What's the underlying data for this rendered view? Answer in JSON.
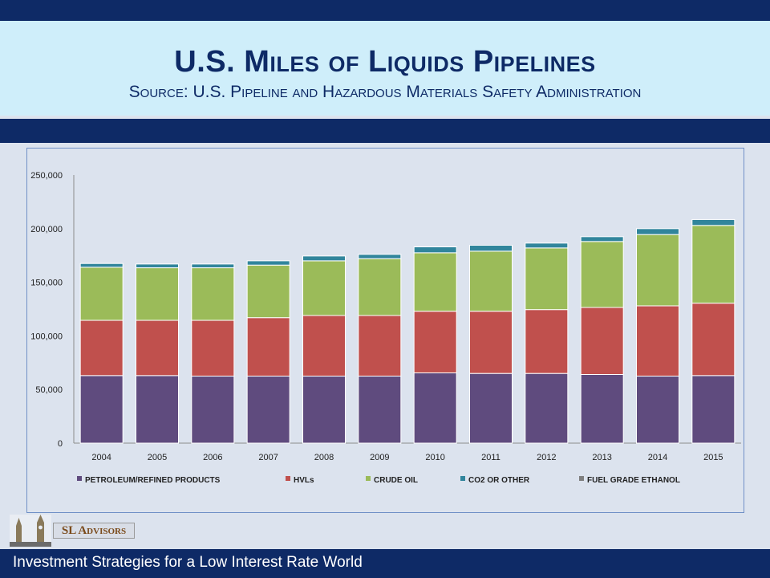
{
  "header": {
    "title": "U.S. Miles of Liquids Pipelines",
    "subtitle": "Source: U.S. Pipeline and Hazardous Materials Safety Administration"
  },
  "footer": {
    "tagline": "Investment Strategies for a Low Interest Rate World"
  },
  "logo": {
    "text": "SL Advisors"
  },
  "chart_data": {
    "type": "bar",
    "stacked": true,
    "categories": [
      "2004",
      "2005",
      "2006",
      "2007",
      "2008",
      "2009",
      "2010",
      "2011",
      "2012",
      "2013",
      "2014",
      "2015"
    ],
    "ylim": [
      0,
      250000
    ],
    "yticks": [
      0,
      50000,
      100000,
      150000,
      200000,
      250000
    ],
    "ytick_labels": [
      "0",
      "50,000",
      "100,000",
      "150,000",
      "200,000",
      "250,000"
    ],
    "legend_position": "bottom",
    "grid": false,
    "series": [
      {
        "name": "PETROLEUM/REFINED PRODUCTS",
        "color": "#5f4b7e",
        "values": [
          63000,
          63000,
          62500,
          62500,
          62500,
          62500,
          65500,
          65000,
          65000,
          64000,
          62500,
          63000
        ]
      },
      {
        "name": "HVLs",
        "color": "#c0504d",
        "values": [
          51500,
          51500,
          52000,
          54500,
          56500,
          56500,
          57500,
          58000,
          59500,
          62500,
          65500,
          67500
        ]
      },
      {
        "name": "CRUDE OIL",
        "color": "#9bbb59",
        "values": [
          49500,
          49000,
          49000,
          49000,
          51000,
          53000,
          54500,
          56000,
          57500,
          61500,
          66500,
          72500
        ]
      },
      {
        "name": "CO2 OR OTHER",
        "color": "#31859c",
        "values": [
          3500,
          3500,
          3500,
          4000,
          4500,
          4000,
          5500,
          5500,
          4500,
          4500,
          5500,
          5500
        ]
      },
      {
        "name": "FUEL GRADE ETHANOL",
        "color": "#7f7f7f",
        "values": [
          0,
          0,
          0,
          0,
          0,
          0,
          0,
          0,
          0,
          0,
          0,
          0
        ]
      }
    ]
  }
}
